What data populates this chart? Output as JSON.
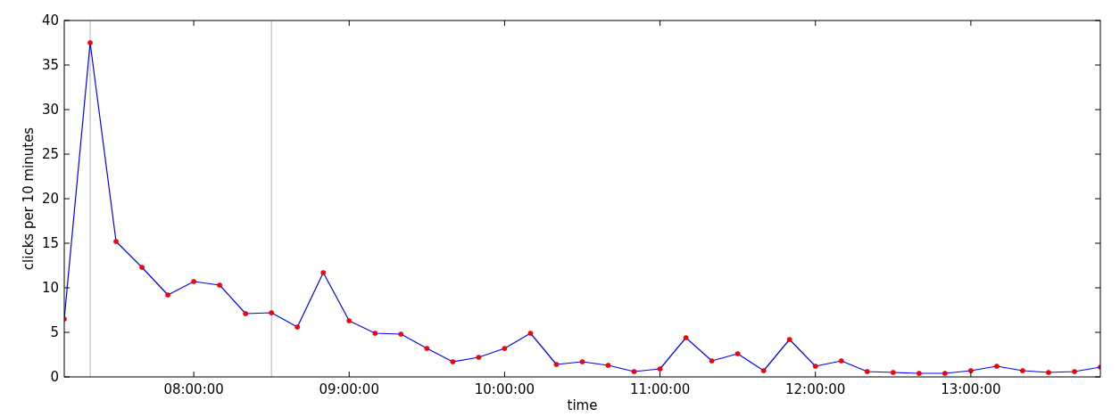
{
  "chart_data": {
    "type": "line",
    "xlabel": "time",
    "ylabel": "clicks per 10 minutes",
    "x": [
      7.1667,
      7.3333,
      7.5,
      7.6667,
      7.8333,
      8,
      8.1667,
      8.3333,
      8.5,
      8.6667,
      8.8333,
      9,
      9.1667,
      9.3333,
      9.5,
      9.6667,
      9.8333,
      10,
      10.1667,
      10.3333,
      10.5,
      10.6667,
      10.8333,
      11,
      11.1667,
      11.3333,
      11.5,
      11.6667,
      11.8333,
      12,
      12.1667,
      12.3333,
      12.5,
      12.6667,
      12.8333,
      13,
      13.1667,
      13.3333,
      13.5,
      13.6667,
      13.8333
    ],
    "series": [
      {
        "color": "#0000ff",
        "values": [
          6.5,
          37.5,
          15.2,
          12.3,
          9.2,
          10.7,
          10.3,
          7.1,
          7.2,
          5.6,
          11.7,
          6.3,
          4.9,
          4.8,
          3.2,
          1.7,
          2.2,
          3.2,
          4.9,
          1.4,
          1.7,
          1.3,
          0.6,
          0.9,
          4.4,
          1.8,
          2.6,
          0.7,
          4.2,
          1.2,
          1.8,
          0.6,
          0.5,
          0.4,
          0.4,
          0.7,
          1.2,
          0.7,
          0.5,
          0.6,
          1.1
        ]
      }
    ],
    "xlim": [
      7.1667,
      13.8333
    ],
    "xticks": [
      {
        "value": 8,
        "label": "08:00:00"
      },
      {
        "value": 9,
        "label": "09:00:00"
      },
      {
        "value": 10,
        "label": "10:00:00"
      },
      {
        "value": 11,
        "label": "11:00:00"
      },
      {
        "value": 12,
        "label": "12:00:00"
      },
      {
        "value": 13,
        "label": "13:00:00"
      }
    ],
    "ylim": [
      0,
      40
    ],
    "yticks": [
      0,
      5,
      10,
      15,
      20,
      25,
      30,
      35,
      40
    ],
    "ref_lines": [
      {
        "axis": "x",
        "value": 7.3333,
        "color": "#bfbfbf"
      },
      {
        "axis": "x",
        "value": 8.5,
        "color": "#bfbfbf"
      }
    ],
    "marker": "circle",
    "line_style": "solid"
  }
}
